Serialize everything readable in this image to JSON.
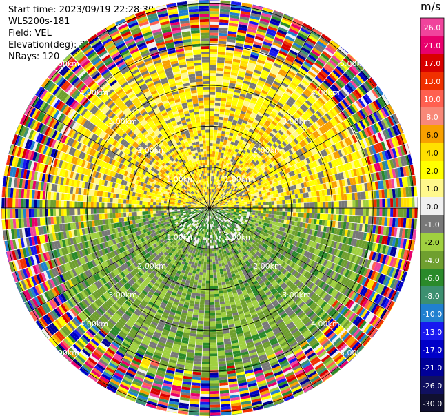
{
  "header": {
    "start_time": "Start time: 2023/09/19 22:28:30",
    "instrument": "WLS200s-181",
    "field": "Field: VEL",
    "elevation": "Elevation(deg): 35.30",
    "nrays": "NRays: 120"
  },
  "colorbar": {
    "unit": "m/s",
    "ticks": [
      "26.0",
      "21.0",
      "17.0",
      "13.0",
      "10.0",
      "8.0",
      "6.0",
      "4.0",
      "2.0",
      "1.0",
      "0.0",
      "-1.0",
      "-2.0",
      "-4.0",
      "-6.0",
      "-8.0",
      "-10.0",
      "-13.0",
      "-17.0",
      "-21.0",
      "-26.0",
      "-30.0"
    ],
    "colors": [
      "#f0449c",
      "#e8006c",
      "#d80000",
      "#f03000",
      "#ff6050",
      "#f88878",
      "#f8a000",
      "#ffe000",
      "#ffff00",
      "#fff88c",
      "#f0f0f0",
      "#787878",
      "#a0d040",
      "#6f9f2f",
      "#2a8a2a",
      "#3c9070",
      "#2080d0",
      "#1818f0",
      "#0000c8",
      "#000098",
      "#101060",
      "#101030"
    ]
  },
  "chart_data": {
    "type": "ppi",
    "field": "VEL",
    "units": "m/s",
    "nrays": 120,
    "elevation_deg": 35.3,
    "range_rings": [
      {
        "label": "1.00km",
        "range_km": 1.0
      },
      {
        "label": "2.00km",
        "range_km": 2.0
      },
      {
        "label": "3.00km",
        "range_km": 3.0
      },
      {
        "label": "4.00km",
        "range_km": 4.0
      },
      {
        "label": "5.00km",
        "range_km": 5.0
      }
    ],
    "max_range_km": 5.0,
    "north_half_mean_velocity": 2.0,
    "south_half_mean_velocity": -2.0
  }
}
